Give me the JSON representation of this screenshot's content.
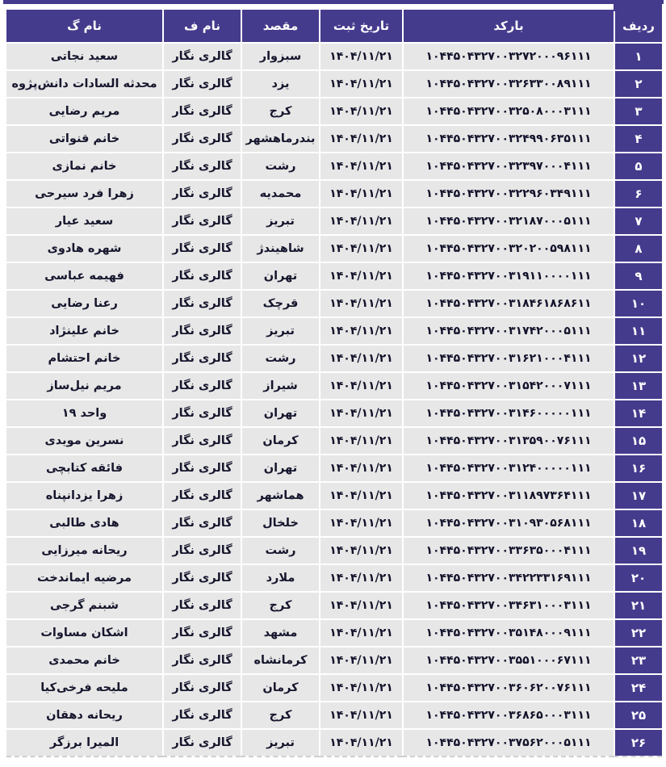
{
  "colors": {
    "header_bg": "#453b8d",
    "row_bg": "#e7e7e7",
    "header_text": "#ffffff",
    "cell_text": "#16162e"
  },
  "table": {
    "columns": [
      {
        "key": "radif",
        "label": "ردیف"
      },
      {
        "key": "barcode",
        "label": "بارکد"
      },
      {
        "key": "date",
        "label": "تاریخ ثبت"
      },
      {
        "key": "destination",
        "label": "مقصد"
      },
      {
        "key": "first_name",
        "label": "نام ف"
      },
      {
        "key": "last_name",
        "label": "نام گ"
      }
    ],
    "rows": [
      {
        "radif": "۱",
        "barcode": "۱۰۴۴۵۰۴۳۲۷۰۰۳۲۷۲۰۰۰۹۶۱۱۱",
        "date": "۱۴۰۴/۱۱/۲۱",
        "destination": "سبزوار",
        "first_name": "گالری نگار",
        "last_name": "سعید نجاتی"
      },
      {
        "radif": "۲",
        "barcode": "۱۰۴۴۵۰۴۳۲۷۰۰۳۲۶۳۳۰۰۸۹۱۱۱",
        "date": "۱۴۰۴/۱۱/۲۱",
        "destination": "یزد",
        "first_name": "گالری نگار",
        "last_name": "محدثه السادات دانش‌پژوه"
      },
      {
        "radif": "۳",
        "barcode": "۱۰۴۴۵۰۴۳۲۷۰۰۳۲۵۰۸۰۰۰۳۱۱۱",
        "date": "۱۴۰۴/۱۱/۲۱",
        "destination": "کرج",
        "first_name": "گالری نگار",
        "last_name": "مریم رضایی"
      },
      {
        "radif": "۴",
        "barcode": "۱۰۴۴۵۰۴۳۲۷۰۰۳۲۴۹۹۰۶۳۵۱۱۱",
        "date": "۱۴۰۴/۱۱/۲۱",
        "destination": "بندرماهشهر",
        "first_name": "گالری نگار",
        "last_name": "خانم قنواتی"
      },
      {
        "radif": "۵",
        "barcode": "۱۰۴۴۵۰۴۳۲۷۰۰۳۲۳۹۷۰۰۰۴۱۱۱",
        "date": "۱۴۰۴/۱۱/۲۱",
        "destination": "رشت",
        "first_name": "گالری نگار",
        "last_name": "خانم نمازی"
      },
      {
        "radif": "۶",
        "barcode": "۱۰۴۴۵۰۴۳۲۷۰۰۳۲۲۹۶۰۳۴۹۱۱۱",
        "date": "۱۴۰۴/۱۱/۲۱",
        "destination": "محمدیه",
        "first_name": "گالری نگار",
        "last_name": "زهرا فرد سیرحی"
      },
      {
        "radif": "۷",
        "barcode": "۱۰۴۴۵۰۴۳۲۷۰۰۳۲۱۸۷۰۰۰۵۱۱۱",
        "date": "۱۴۰۴/۱۱/۲۱",
        "destination": "تبریز",
        "first_name": "گالری نگار",
        "last_name": "سعید عیار"
      },
      {
        "radif": "۸",
        "barcode": "۱۰۴۴۵۰۴۳۲۷۰۰۳۲۰۲۰۰۵۹۸۱۱۱",
        "date": "۱۴۰۴/۱۱/۲۱",
        "destination": "شاهیندژ",
        "first_name": "گالری نگار",
        "last_name": "شهره هادوی"
      },
      {
        "radif": "۹",
        "barcode": "۱۰۴۴۵۰۴۳۲۷۰۰۳۱۹۱۱۰۰۰۰۱۱۱",
        "date": "۱۴۰۴/۱۱/۲۱",
        "destination": "تهران",
        "first_name": "گالری نگار",
        "last_name": "فهیمه عباسی"
      },
      {
        "radif": "۱۰",
        "barcode": "۱۰۴۴۵۰۴۳۲۷۰۰۳۱۸۴۶۱۸۶۸۶۱۱",
        "date": "۱۴۰۴/۱۱/۲۱",
        "destination": "قرچک",
        "first_name": "گالری نگار",
        "last_name": "رعنا رضایی"
      },
      {
        "radif": "۱۱",
        "barcode": "۱۰۴۴۵۰۴۳۲۷۰۰۳۱۷۴۲۰۰۰۵۱۱۱",
        "date": "۱۴۰۴/۱۱/۲۱",
        "destination": "تبریز",
        "first_name": "گالری نگار",
        "last_name": "خانم علینژاد"
      },
      {
        "radif": "۱۲",
        "barcode": "۱۰۴۴۵۰۴۳۲۷۰۰۳۱۶۲۱۰۰۰۴۱۱۱",
        "date": "۱۴۰۴/۱۱/۲۱",
        "destination": "رشت",
        "first_name": "گالری نگار",
        "last_name": "خانم احتشام"
      },
      {
        "radif": "۱۳",
        "barcode": "۱۰۴۴۵۰۴۳۲۷۰۰۳۱۵۴۲۰۰۰۷۱۱۱",
        "date": "۱۴۰۴/۱۱/۲۱",
        "destination": "شیراز",
        "first_name": "گالری نگار",
        "last_name": "مریم نیل‌ساز"
      },
      {
        "radif": "۱۴",
        "barcode": "۱۰۴۴۵۰۴۳۲۷۰۰۳۱۴۶۰۰۰۰۰۱۱۱",
        "date": "۱۴۰۴/۱۱/۲۱",
        "destination": "تهران",
        "first_name": "گالری نگار",
        "last_name": "واحد ۱۹"
      },
      {
        "radif": "۱۵",
        "barcode": "۱۰۴۴۵۰۴۳۲۷۰۰۳۱۳۵۹۰۰۷۶۱۱۱",
        "date": "۱۴۰۴/۱۱/۲۱",
        "destination": "کرمان",
        "first_name": "گالری نگار",
        "last_name": "نسرین مویدی"
      },
      {
        "radif": "۱۶",
        "barcode": "۱۰۴۴۵۰۴۳۲۷۰۰۳۱۲۴۰۰۰۰۰۱۱۱",
        "date": "۱۴۰۴/۱۱/۲۱",
        "destination": "تهران",
        "first_name": "گالری نگار",
        "last_name": "فائقه کتابچی"
      },
      {
        "radif": "۱۷",
        "barcode": "۱۰۴۴۵۰۴۳۲۷۰۰۳۱۱۸۹۷۳۶۴۱۱۱",
        "date": "۱۴۰۴/۱۱/۲۱",
        "destination": "هماشهر",
        "first_name": "گالری نگار",
        "last_name": "زهرا یزدانپناه"
      },
      {
        "radif": "۱۸",
        "barcode": "۱۰۴۴۵۰۴۳۲۷۰۰۳۱۰۹۳۰۵۶۸۱۱۱",
        "date": "۱۴۰۴/۱۱/۲۱",
        "destination": "خلخال",
        "first_name": "گالری نگار",
        "last_name": "هادی طالبی"
      },
      {
        "radif": "۱۹",
        "barcode": "۱۰۴۴۵۰۴۳۲۷۰۰۳۳۶۳۵۰۰۰۴۱۱۱",
        "date": "۱۴۰۴/۱۱/۲۱",
        "destination": "رشت",
        "first_name": "گالری نگار",
        "last_name": "ریحانه میرزایی"
      },
      {
        "radif": "۲۰",
        "barcode": "۱۰۴۴۵۰۴۳۲۷۰۰۳۴۲۲۳۳۱۶۹۱۱۱",
        "date": "۱۴۰۴/۱۱/۲۱",
        "destination": "ملارد",
        "first_name": "گالری نگار",
        "last_name": "مرضیه ایماندخت"
      },
      {
        "radif": "۲۱",
        "barcode": "۱۰۴۴۵۰۴۳۲۷۰۰۳۴۶۳۱۰۰۰۳۱۱۱",
        "date": "۱۴۰۴/۱۱/۲۱",
        "destination": "کرج",
        "first_name": "گالری نگار",
        "last_name": "شبنم گرجی"
      },
      {
        "radif": "۲۲",
        "barcode": "۱۰۴۴۵۰۴۳۲۷۰۰۳۵۱۴۸۰۰۰۹۱۱۱",
        "date": "۱۴۰۴/۱۱/۲۱",
        "destination": "مشهد",
        "first_name": "گالری نگار",
        "last_name": "اشکان مساوات"
      },
      {
        "radif": "۲۳",
        "barcode": "۱۰۴۴۵۰۴۳۲۷۰۰۳۵۵۱۰۰۰۶۷۱۱۱",
        "date": "۱۴۰۴/۱۱/۲۱",
        "destination": "کرمانشاه",
        "first_name": "گالری نگار",
        "last_name": "خانم محمدی"
      },
      {
        "radif": "۲۴",
        "barcode": "۱۰۴۴۵۰۴۳۲۷۰۰۳۶۰۶۲۰۰۷۶۱۱۱",
        "date": "۱۴۰۴/۱۱/۲۱",
        "destination": "کرمان",
        "first_name": "گالری نگار",
        "last_name": "ملیحه فرخی‌کیا"
      },
      {
        "radif": "۲۵",
        "barcode": "۱۰۴۴۵۰۴۳۲۷۰۰۳۶۸۶۵۰۰۰۳۱۱۱",
        "date": "۱۴۰۴/۱۱/۲۱",
        "destination": "کرج",
        "first_name": "گالری نگار",
        "last_name": "ریحانه دهقان"
      },
      {
        "radif": "۲۶",
        "barcode": "۱۰۴۴۵۰۴۳۲۷۰۰۳۷۵۶۲۰۰۰۵۱۱۱",
        "date": "۱۴۰۴/۱۱/۲۱",
        "destination": "تبریز",
        "first_name": "گالری نگار",
        "last_name": "المیرا برزگر"
      }
    ]
  }
}
